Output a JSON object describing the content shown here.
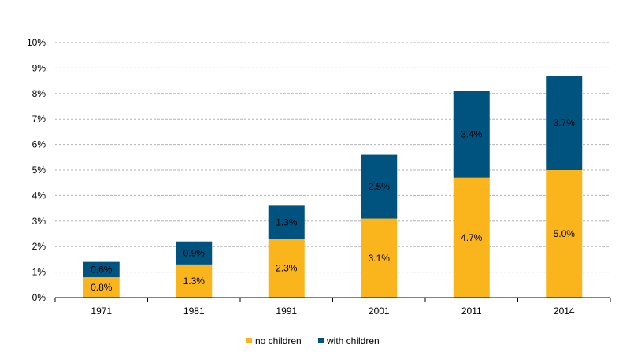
{
  "chart_data": {
    "type": "bar",
    "stacked": true,
    "categories": [
      "1971",
      "1981",
      "1991",
      "2001",
      "2011",
      "2014"
    ],
    "series": [
      {
        "name": "no children",
        "color": "#F9B51B",
        "values": [
          0.8,
          1.3,
          2.3,
          3.1,
          4.7,
          5.0
        ],
        "labels": [
          "0.8%",
          "1.3%",
          "2.3%",
          "3.1%",
          "4.7%",
          "5.0%"
        ]
      },
      {
        "name": "with children",
        "color": "#00537E",
        "values": [
          0.6,
          0.9,
          1.3,
          2.5,
          3.4,
          3.7
        ],
        "labels": [
          "0.6%",
          "0.9%",
          "1.3%",
          "2.5%",
          "3.4%",
          "3.7%"
        ]
      }
    ],
    "ylim": [
      0,
      10
    ],
    "yticks": [
      0,
      1,
      2,
      3,
      4,
      5,
      6,
      7,
      8,
      9,
      10
    ],
    "ytick_labels": [
      "0%",
      "1%",
      "2%",
      "3%",
      "4%",
      "5%",
      "6%",
      "7%",
      "8%",
      "9%",
      "10%"
    ],
    "grid": true,
    "legend_position": "bottom"
  }
}
